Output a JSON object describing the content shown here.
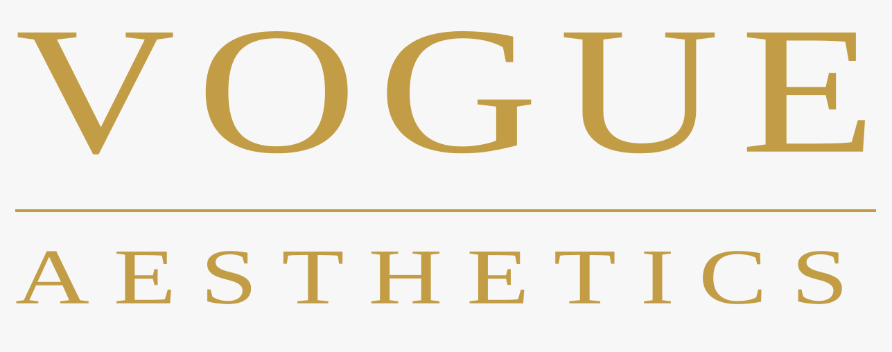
{
  "logo": {
    "primary_text": "VOGUE",
    "secondary_text": "AESTHETICS",
    "color": "#c29d45",
    "background": "#f7f7f7"
  }
}
